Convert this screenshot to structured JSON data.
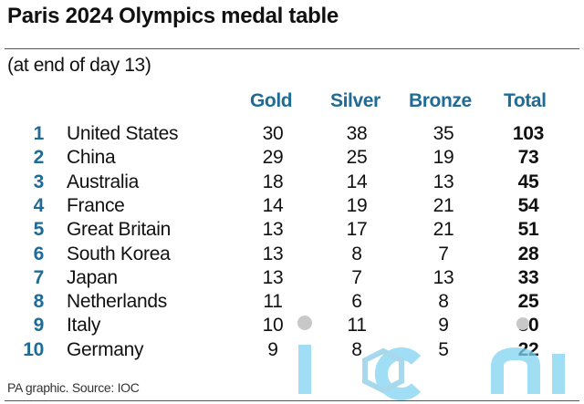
{
  "title": "Paris 2024 Olympics medal table",
  "subtitle": "(at end of day 13)",
  "columns": [
    "Gold",
    "Silver",
    "Bronze",
    "Total"
  ],
  "rows": [
    {
      "rank": "1",
      "country": "United States",
      "gold": "30",
      "silver": "38",
      "bronze": "35",
      "total": "103"
    },
    {
      "rank": "2",
      "country": "China",
      "gold": "29",
      "silver": "25",
      "bronze": "19",
      "total": "73"
    },
    {
      "rank": "3",
      "country": "Australia",
      "gold": "18",
      "silver": "14",
      "bronze": "13",
      "total": "45"
    },
    {
      "rank": "4",
      "country": "France",
      "gold": "14",
      "silver": "19",
      "bronze": "21",
      "total": "54"
    },
    {
      "rank": "5",
      "country": "Great Britain",
      "gold": "13",
      "silver": "17",
      "bronze": "21",
      "total": "51"
    },
    {
      "rank": "6",
      "country": "South Korea",
      "gold": "13",
      "silver": "8",
      "bronze": "7",
      "total": "28"
    },
    {
      "rank": "7",
      "country": "Japan",
      "gold": "13",
      "silver": "7",
      "bronze": "13",
      "total": "33"
    },
    {
      "rank": "8",
      "country": "Netherlands",
      "gold": "11",
      "silver": "6",
      "bronze": "8",
      "total": "25"
    },
    {
      "rank": "9",
      "country": "Italy",
      "gold": "10",
      "silver": "11",
      "bronze": "9",
      "total": "30"
    },
    {
      "rank": "10",
      "country": "Germany",
      "gold": "9",
      "silver": "8",
      "bronze": "5",
      "total": "22"
    }
  ],
  "footer": "PA graphic. Source: IOC",
  "watermark": "iconic",
  "colors": {
    "accent": "#1f6b96",
    "watermark": "#7fd3f0"
  }
}
